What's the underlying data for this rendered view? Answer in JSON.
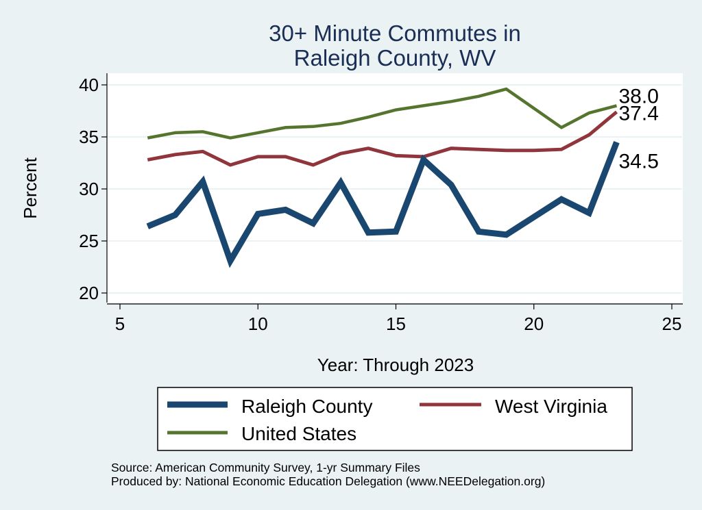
{
  "chart_data": {
    "type": "line",
    "title_lines": [
      "30+ Minute Commutes in",
      "Raleigh County, WV"
    ],
    "xlabel": "Year: Through 2023",
    "ylabel": "Percent",
    "xlim": [
      5,
      25
    ],
    "ylim": [
      20,
      40
    ],
    "xticks": [
      5,
      10,
      15,
      20,
      25
    ],
    "yticks": [
      20,
      25,
      30,
      35,
      40
    ],
    "grid": true,
    "series": [
      {
        "name": "Raleigh County",
        "color": "#1a476f",
        "x": [
          6,
          7,
          8,
          9,
          10,
          11,
          12,
          13,
          14,
          15,
          16,
          17,
          18,
          19,
          20,
          21,
          22,
          23
        ],
        "values": [
          26.4,
          27.5,
          30.7,
          23.1,
          27.6,
          28.0,
          26.7,
          30.6,
          25.8,
          25.9,
          32.8,
          30.4,
          25.9,
          25.6,
          27.3,
          29.0,
          27.7,
          34.5
        ],
        "end_label": "34.5"
      },
      {
        "name": "West Virginia",
        "color": "#90353b",
        "x": [
          6,
          7,
          8,
          9,
          10,
          11,
          12,
          13,
          14,
          15,
          16,
          17,
          18,
          19,
          20,
          21,
          22,
          23
        ],
        "values": [
          32.8,
          33.3,
          33.6,
          32.3,
          33.1,
          33.1,
          32.3,
          33.4,
          33.9,
          33.2,
          33.1,
          33.9,
          33.8,
          33.7,
          33.7,
          33.8,
          35.2,
          37.4
        ],
        "end_label": "37.4"
      },
      {
        "name": "United States",
        "color": "#55752f",
        "x": [
          6,
          7,
          8,
          9,
          10,
          11,
          12,
          13,
          14,
          15,
          16,
          17,
          18,
          19,
          21,
          22,
          23
        ],
        "values": [
          34.9,
          35.4,
          35.5,
          34.9,
          35.4,
          35.9,
          36.0,
          36.3,
          36.9,
          37.6,
          38.0,
          38.4,
          38.9,
          39.6,
          35.9,
          37.3,
          38.0
        ],
        "end_label": "38.0"
      }
    ],
    "legend": {
      "placement": "bottom",
      "entries": [
        "Raleigh County",
        "West Virginia",
        "United States"
      ]
    }
  },
  "source_lines": [
    "Source: American Community Survey, 1-yr Summary Files",
    "Produced by: National Economic Education Delegation (www.NEEDelegation.org)"
  ],
  "colors": {
    "background": "#eaf2f3",
    "plot_background": "#ffffff",
    "grid": "#eaf2f3",
    "title": "#1a2d55"
  }
}
